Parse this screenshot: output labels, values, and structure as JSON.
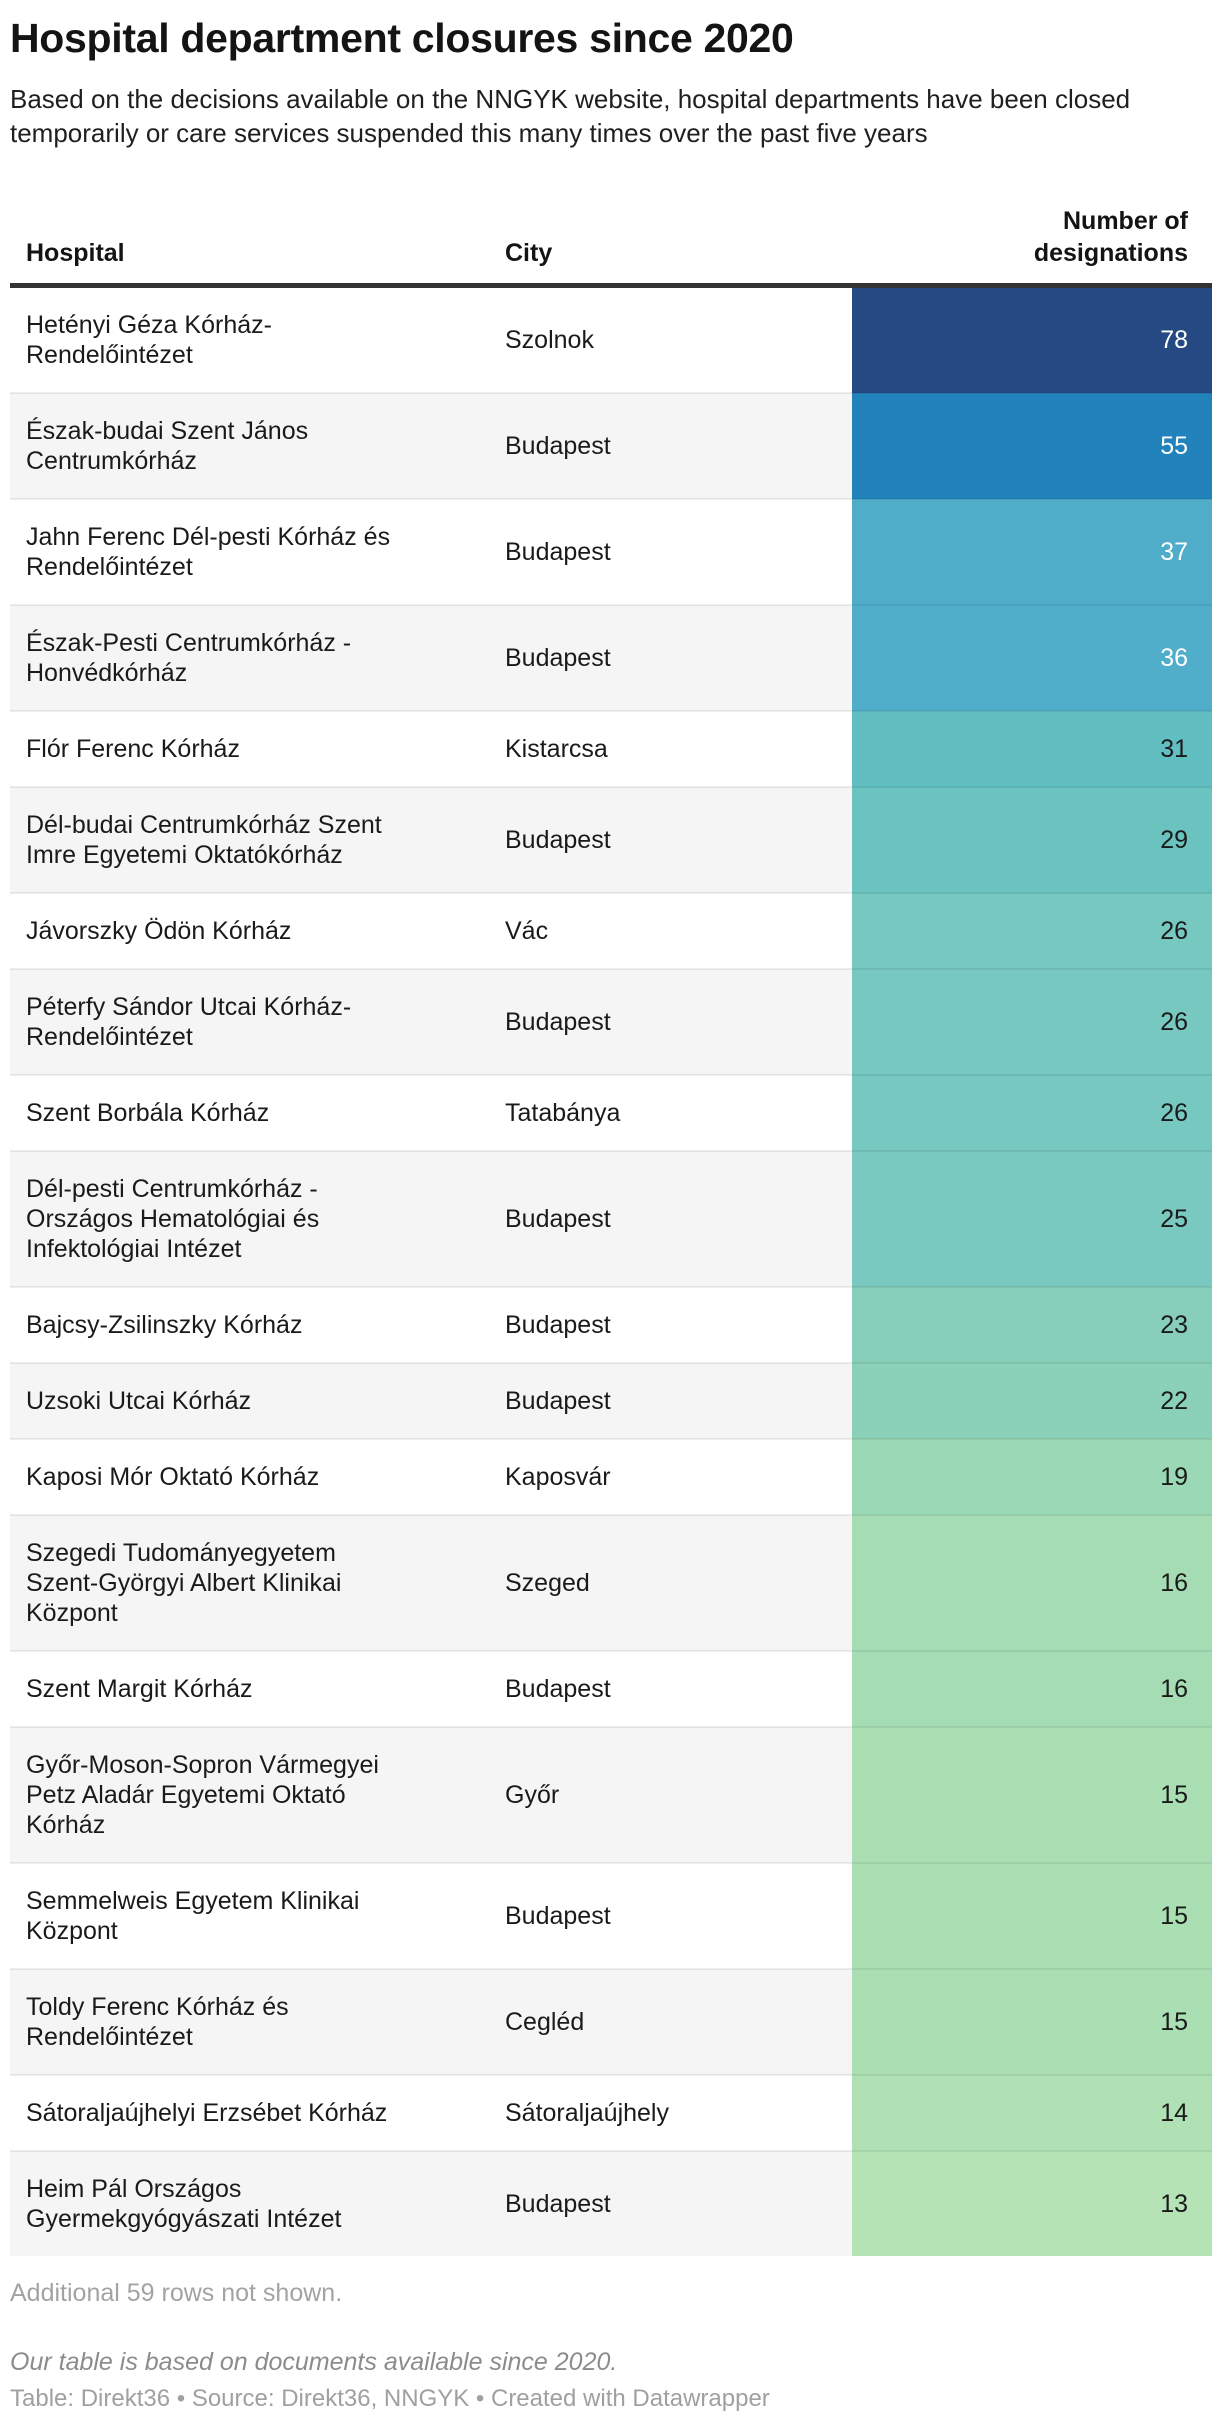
{
  "title": "Hospital department closures since 2020",
  "subtitle": "Based on the decisions available on the NNGYK website, hospital departments have been closed temporarily or care services suspended this many times over the past five years",
  "chart_data": {
    "type": "table",
    "columns": [
      "Hospital",
      "City",
      "Number of designations"
    ],
    "heatmap_column": "Number of designations",
    "value_range_shown": [
      13,
      78
    ],
    "palette_hint": "sequential dark-blue to light-green",
    "rows": [
      {
        "hospital": "Hetényi Géza Kórház-Rendelőintézet",
        "city": "Szolnok",
        "value": 78,
        "color": "#254a83",
        "value_text_color": "#ffffff"
      },
      {
        "hospital": "Észak-budai Szent János Centrumkórház",
        "city": "Budapest",
        "value": 55,
        "color": "#2182bc",
        "value_text_color": "#ffffff"
      },
      {
        "hospital": "Jahn Ferenc Dél-pesti Kórház és Rendelőintézet",
        "city": "Budapest",
        "value": 37,
        "color": "#4fadca",
        "value_text_color": "#ffffff"
      },
      {
        "hospital": "Észak-Pesti Centrumkórház - Honvédkórház",
        "city": "Budapest",
        "value": 36,
        "color": "#51aeca",
        "value_text_color": "#ffffff"
      },
      {
        "hospital": "Flór Ferenc Kórház",
        "city": "Kistarcsa",
        "value": 31,
        "color": "#61bfc1",
        "value_text_color": "#1a1a1a"
      },
      {
        "hospital": "Dél-budai Centrumkórház Szent Imre Egyetemi Oktatókórház",
        "city": "Budapest",
        "value": 29,
        "color": "#6ac3bf",
        "value_text_color": "#1a1a1a"
      },
      {
        "hospital": "Jávorszky Ödön Kórház",
        "city": "Vác",
        "value": 26,
        "color": "#76c8c0",
        "value_text_color": "#1a1a1a"
      },
      {
        "hospital": "Péterfy Sándor Utcai Kórház-Rendelőintézet",
        "city": "Budapest",
        "value": 26,
        "color": "#76c8c0",
        "value_text_color": "#1a1a1a"
      },
      {
        "hospital": "Szent Borbála Kórház",
        "city": "Tatabánya",
        "value": 26,
        "color": "#76c8c0",
        "value_text_color": "#1a1a1a"
      },
      {
        "hospital": "Dél-pesti Centrumkórház - Országos Hematológiai és Infektológiai Intézet",
        "city": "Budapest",
        "value": 25,
        "color": "#79c9c0",
        "value_text_color": "#1a1a1a"
      },
      {
        "hospital": "Bajcsy-Zsilinszky Kórház",
        "city": "Budapest",
        "value": 23,
        "color": "#87cfba",
        "value_text_color": "#1a1a1a"
      },
      {
        "hospital": "Uzsoki Utcai Kórház",
        "city": "Budapest",
        "value": 22,
        "color": "#8bd1b9",
        "value_text_color": "#1a1a1a"
      },
      {
        "hospital": "Kaposi Mór Oktató Kórház",
        "city": "Kaposvár",
        "value": 19,
        "color": "#9bd8b5",
        "value_text_color": "#1a1a1a"
      },
      {
        "hospital": "Szegedi Tudományegyetem Szent-Györgyi Albert Klinikai Központ",
        "city": "Szeged",
        "value": 16,
        "color": "#a5dcb3",
        "value_text_color": "#1a1a1a"
      },
      {
        "hospital": "Szent Margit Kórház",
        "city": "Budapest",
        "value": 16,
        "color": "#a5dcb3",
        "value_text_color": "#1a1a1a"
      },
      {
        "hospital": "Győr-Moson-Sopron Vármegyei Petz Aladár Egyetemi Oktató Kórház",
        "city": "Győr",
        "value": 15,
        "color": "#aadfb4",
        "value_text_color": "#1a1a1a"
      },
      {
        "hospital": "Semmelweis Egyetem Klinikai Központ",
        "city": "Budapest",
        "value": 15,
        "color": "#aadfb4",
        "value_text_color": "#1a1a1a"
      },
      {
        "hospital": "Toldy Ferenc Kórház és Rendelőintézet",
        "city": "Cegléd",
        "value": 15,
        "color": "#aadfb4",
        "value_text_color": "#1a1a1a"
      },
      {
        "hospital": "Sátoraljaújhelyi Erzsébet Kórház",
        "city": "Sátoraljaújhely",
        "value": 14,
        "color": "#b0e1b5",
        "value_text_color": "#1a1a1a"
      },
      {
        "hospital": "Heim Pál Országos Gyermekgyógyászati Intézet",
        "city": "Budapest",
        "value": 13,
        "color": "#b5e3b6",
        "value_text_color": "#1a1a1a"
      }
    ],
    "layout": {
      "row_stripe_colors": [
        "#ffffff",
        "#f5f5f5"
      ],
      "header_rule_color": "#333333"
    }
  },
  "footer": {
    "additional_note": "Additional 59 rows not shown.",
    "note": "Our table is based on documents available since 2020.",
    "attribution": "Table: Direkt36 • Source: Direkt36, NNGYK • Created with Datawrapper"
  }
}
